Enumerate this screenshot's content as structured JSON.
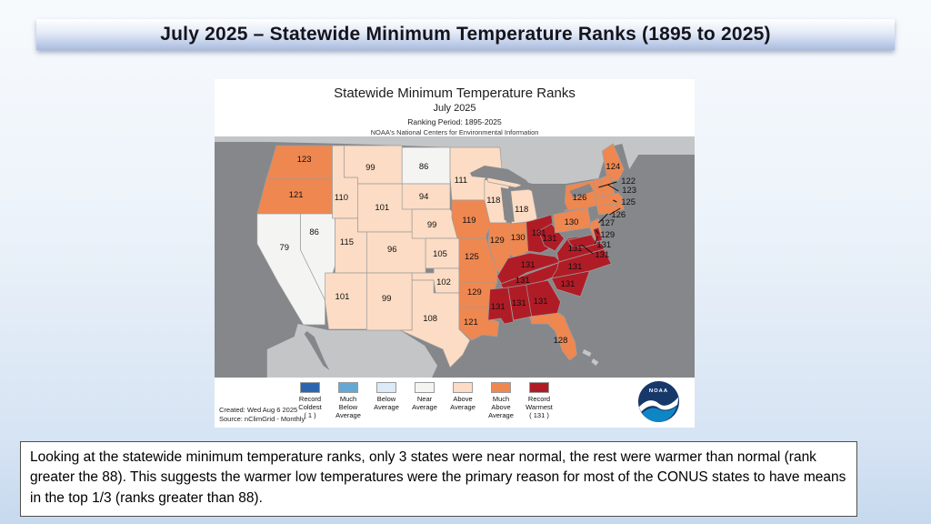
{
  "slide": {
    "title": "July 2025 – Statewide Minimum Temperature Ranks (1895 to 2025)",
    "caption": "Looking at the statewide minimum temperature ranks, only 3 states were near normal, the rest were warmer than normal (rank greater the 88).  This suggests the warmer low temperatures were the primary reason for most of the CONUS states to have means in the top 1/3 (ranks greater than 88)."
  },
  "map_figure": {
    "title": "Statewide Minimum Temperature Ranks",
    "subtitle": "July 2025",
    "ranking_period": "Ranking Period: 1895-2025",
    "attribution": "NOAA's National Centers for Environmental Information",
    "created": "Created: Wed Aug 6 2025",
    "source": "Source: nClimGrid - Monthly",
    "noaa_logo_text": "NOAA",
    "colors": {
      "ocean": "#85878a",
      "foreign_land": "#c3c5c7",
      "panel": "#ffffff",
      "state_border": "#9d9d9d",
      "label_text": "#101010"
    }
  },
  "legend": {
    "items": [
      {
        "category": "record_coldest",
        "color": "#2b65af",
        "lines": [
          "Record",
          "Coldest",
          "( 1 )"
        ]
      },
      {
        "category": "much_below",
        "color": "#66a8d4",
        "lines": [
          "Much",
          "Below",
          "Average"
        ]
      },
      {
        "category": "below",
        "color": "#dce9f6",
        "lines": [
          "Below",
          "Average"
        ]
      },
      {
        "category": "near",
        "color": "#f4f5f3",
        "lines": [
          "Near",
          "Average"
        ]
      },
      {
        "category": "above",
        "color": "#fcdcc4",
        "lines": [
          "Above",
          "Average"
        ]
      },
      {
        "category": "much_above",
        "color": "#ef8750",
        "lines": [
          "Much",
          "Above",
          "Average"
        ]
      },
      {
        "category": "record_warmest",
        "color": "#b01c26",
        "lines": [
          "Record",
          "Warmest",
          "( 131 )"
        ]
      }
    ]
  },
  "chart_data": {
    "type": "choropleth_map",
    "title": "Statewide Minimum Temperature Ranks",
    "period": "July 2025",
    "ranking_period": "1895-2025",
    "rank_scale": {
      "min": 1,
      "max": 131,
      "min_meaning": "Record Coldest",
      "max_meaning": "Record Warmest"
    },
    "states": [
      {
        "abbr": "WA",
        "name": "Washington",
        "rank": 123,
        "category": "much_above"
      },
      {
        "abbr": "OR",
        "name": "Oregon",
        "rank": 121,
        "category": "much_above"
      },
      {
        "abbr": "CA",
        "name": "California",
        "rank": 79,
        "category": "near"
      },
      {
        "abbr": "NV",
        "name": "Nevada",
        "rank": 86,
        "category": "near"
      },
      {
        "abbr": "ID",
        "name": "Idaho",
        "rank": 110,
        "category": "above"
      },
      {
        "abbr": "MT",
        "name": "Montana",
        "rank": 99,
        "category": "above"
      },
      {
        "abbr": "WY",
        "name": "Wyoming",
        "rank": 101,
        "category": "above"
      },
      {
        "abbr": "UT",
        "name": "Utah",
        "rank": 115,
        "category": "above"
      },
      {
        "abbr": "CO",
        "name": "Colorado",
        "rank": 96,
        "category": "above"
      },
      {
        "abbr": "AZ",
        "name": "Arizona",
        "rank": 101,
        "category": "above"
      },
      {
        "abbr": "NM",
        "name": "New Mexico",
        "rank": 99,
        "category": "above"
      },
      {
        "abbr": "ND",
        "name": "North Dakota",
        "rank": 86,
        "category": "near"
      },
      {
        "abbr": "SD",
        "name": "South Dakota",
        "rank": 94,
        "category": "above"
      },
      {
        "abbr": "NE",
        "name": "Nebraska",
        "rank": 99,
        "category": "above"
      },
      {
        "abbr": "KS",
        "name": "Kansas",
        "rank": 105,
        "category": "above"
      },
      {
        "abbr": "OK",
        "name": "Oklahoma",
        "rank": 102,
        "category": "above"
      },
      {
        "abbr": "TX",
        "name": "Texas",
        "rank": 108,
        "category": "above"
      },
      {
        "abbr": "MN",
        "name": "Minnesota",
        "rank": 111,
        "category": "above"
      },
      {
        "abbr": "IA",
        "name": "Iowa",
        "rank": 119,
        "category": "much_above"
      },
      {
        "abbr": "MO",
        "name": "Missouri",
        "rank": 125,
        "category": "much_above"
      },
      {
        "abbr": "AR",
        "name": "Arkansas",
        "rank": 129,
        "category": "much_above"
      },
      {
        "abbr": "LA",
        "name": "Louisiana",
        "rank": 121,
        "category": "much_above"
      },
      {
        "abbr": "WI",
        "name": "Wisconsin",
        "rank": 118,
        "category": "above"
      },
      {
        "abbr": "MI",
        "name": "Michigan",
        "rank": 118,
        "category": "above"
      },
      {
        "abbr": "IL",
        "name": "Illinois",
        "rank": 129,
        "category": "much_above"
      },
      {
        "abbr": "IN",
        "name": "Indiana",
        "rank": 130,
        "category": "much_above"
      },
      {
        "abbr": "OH",
        "name": "Ohio",
        "rank": 131,
        "category": "record_warmest"
      },
      {
        "abbr": "KY",
        "name": "Kentucky",
        "rank": 131,
        "category": "record_warmest"
      },
      {
        "abbr": "TN",
        "name": "Tennessee",
        "rank": 131,
        "category": "record_warmest"
      },
      {
        "abbr": "MS",
        "name": "Mississippi",
        "rank": 131,
        "category": "record_warmest"
      },
      {
        "abbr": "AL",
        "name": "Alabama",
        "rank": 131,
        "category": "record_warmest"
      },
      {
        "abbr": "GA",
        "name": "Georgia",
        "rank": 131,
        "category": "record_warmest"
      },
      {
        "abbr": "FL",
        "name": "Florida",
        "rank": 128,
        "category": "much_above"
      },
      {
        "abbr": "SC",
        "name": "South Carolina",
        "rank": 131,
        "category": "record_warmest"
      },
      {
        "abbr": "NC",
        "name": "North Carolina",
        "rank": 131,
        "category": "record_warmest"
      },
      {
        "abbr": "VA",
        "name": "Virginia",
        "rank": 131,
        "category": "record_warmest"
      },
      {
        "abbr": "WV",
        "name": "West Virginia",
        "rank": 131,
        "category": "record_warmest"
      },
      {
        "abbr": "PA",
        "name": "Pennsylvania",
        "rank": 130,
        "category": "much_above"
      },
      {
        "abbr": "NY",
        "name": "New York",
        "rank": 126,
        "category": "much_above"
      },
      {
        "abbr": "ME",
        "name": "Maine",
        "rank": 124,
        "category": "much_above"
      },
      {
        "abbr": "VT",
        "name": "Vermont",
        "rank": 122,
        "category": "much_above"
      },
      {
        "abbr": "NH",
        "name": "New Hampshire",
        "rank": 123,
        "category": "much_above"
      },
      {
        "abbr": "MA",
        "name": "Massachusetts",
        "rank": 125,
        "category": "much_above"
      },
      {
        "abbr": "RI",
        "name": "Rhode Island",
        "rank": 126,
        "category": "much_above"
      },
      {
        "abbr": "CT",
        "name": "Connecticut",
        "rank": 127,
        "category": "much_above"
      },
      {
        "abbr": "NJ",
        "name": "New Jersey",
        "rank": 129,
        "category": "much_above"
      },
      {
        "abbr": "DE",
        "name": "Delaware",
        "rank": 131,
        "category": "record_warmest"
      },
      {
        "abbr": "MD",
        "name": "Maryland",
        "rank": 131,
        "category": "record_warmest"
      }
    ]
  }
}
